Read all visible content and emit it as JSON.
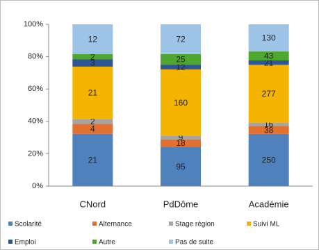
{
  "chart_data": {
    "type": "stacked_percent_bar",
    "categories": [
      "CNord",
      "PdDôme",
      "Académie"
    ],
    "series": [
      {
        "name": "Scolarité",
        "color": "#4f81bd",
        "values": [
          21,
          95,
          250
        ]
      },
      {
        "name": "Alternance",
        "color": "#e2702e",
        "values": [
          4,
          18,
          38
        ]
      },
      {
        "name": "Stage région",
        "color": "#a5a5a5",
        "values": [
          2,
          9,
          16
        ]
      },
      {
        "name": "Suivi ML",
        "color": "#f5b400",
        "values": [
          21,
          160,
          277
        ]
      },
      {
        "name": "Emploi",
        "color": "#2f5597",
        "values": [
          3,
          12,
          21
        ]
      },
      {
        "name": "Autre",
        "color": "#4ea72e",
        "values": [
          2,
          25,
          43
        ]
      },
      {
        "name": "Pas de suite",
        "color": "#9dc3e6",
        "values": [
          12,
          72,
          130
        ]
      }
    ],
    "ylim": [
      0,
      100
    ],
    "yticks": [
      {
        "value": 0,
        "label": "0%"
      },
      {
        "value": 20,
        "label": "20%"
      },
      {
        "value": 40,
        "label": "40%"
      },
      {
        "value": 60,
        "label": "60%"
      },
      {
        "value": 80,
        "label": "80%"
      },
      {
        "value": 100,
        "label": "100%"
      }
    ],
    "grid": false,
    "legend": "bottom"
  }
}
